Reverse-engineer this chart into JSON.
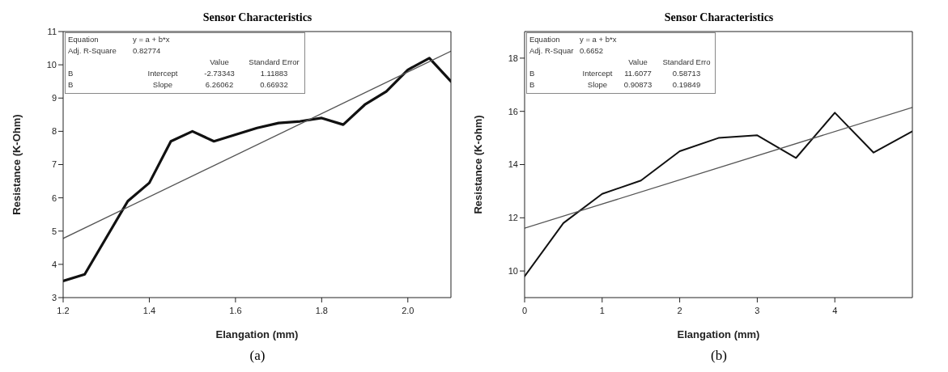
{
  "chart_data": [
    {
      "type": "line",
      "title": "Sensor Characteristics",
      "xlabel": "Elangation (mm)",
      "ylabel": "Resistance (K-Ohm)",
      "xlim": [
        1.2,
        2.1
      ],
      "xticks": [
        {
          "value": 1.2,
          "label": "1.2"
        },
        {
          "value": 1.4,
          "label": "1.4"
        },
        {
          "value": 1.6,
          "label": "1.6"
        },
        {
          "value": 1.8,
          "label": "1.8"
        },
        {
          "value": 2.0,
          "label": "2.0"
        }
      ],
      "ylim": [
        3,
        11
      ],
      "yticks": [
        3,
        4,
        5,
        6,
        7,
        8,
        9,
        10,
        11
      ],
      "series": [
        {
          "color": "#111111",
          "x": [
            1.2,
            1.25,
            1.3,
            1.35,
            1.4,
            1.45,
            1.5,
            1.55,
            1.6,
            1.65,
            1.7,
            1.75,
            1.8,
            1.85,
            1.9,
            1.95,
            2.0,
            2.05,
            2.1
          ],
          "values": [
            3.5,
            3.7,
            4.8,
            5.9,
            6.45,
            7.7,
            8.0,
            7.7,
            7.9,
            8.1,
            8.25,
            8.3,
            8.4,
            8.2,
            8.8,
            9.2,
            9.85,
            10.2,
            9.5
          ]
        },
        {
          "color": "#555555",
          "x": [
            1.2,
            2.1
          ],
          "values": [
            4.78,
            10.41
          ]
        }
      ],
      "annotations": [
        "Equation",
        "y = a + b*x",
        "Adj. R-Square",
        "0.82774",
        "Value",
        "Standard Error",
        "B",
        "Intercept",
        "-2.73343",
        "1.11883",
        "B",
        "Slope",
        "6.26062",
        "0.66932",
        "(a)"
      ]
    },
    {
      "type": "line",
      "title": "Sensor Characteristics",
      "xlabel": "Elangation (mm)",
      "ylabel": "Resistance (K-ohm)",
      "xlim": [
        0,
        5
      ],
      "xticks": [
        0,
        1,
        2,
        3,
        4
      ],
      "ylim": [
        9,
        19
      ],
      "yticks": [
        10,
        12,
        14,
        16,
        18
      ],
      "series": [
        {
          "color": "#111111",
          "x": [
            0,
            0.5,
            1,
            1.5,
            2,
            2.5,
            3,
            3.5,
            4,
            4.5,
            5
          ],
          "values": [
            9.8,
            11.8,
            12.9,
            13.4,
            14.5,
            15.0,
            15.1,
            14.25,
            15.95,
            14.45,
            15.25
          ]
        },
        {
          "color": "#555555",
          "x": [
            0,
            5
          ],
          "values": [
            11.61,
            16.15
          ]
        }
      ],
      "annotations": [
        "Equation",
        "y = a + b*x",
        "Adj. R-Squar",
        "0.6652",
        "Value",
        "Standard Erro",
        "B",
        "Intercept",
        "11.6077",
        "0.58713",
        "B",
        "Slope",
        "0.90873",
        "0.19849",
        "(b)"
      ]
    }
  ]
}
